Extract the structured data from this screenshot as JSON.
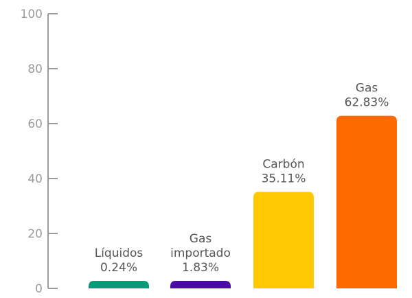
{
  "chart_data": {
    "type": "bar",
    "categories": [
      "Líquidos",
      "Gas importado",
      "Carbón",
      "Gas"
    ],
    "category_label_lines": [
      [
        "Líquidos"
      ],
      [
        "Gas",
        "importado"
      ],
      [
        "Carbón"
      ],
      [
        "Gas"
      ]
    ],
    "values": [
      0.24,
      1.83,
      35.11,
      62.83
    ],
    "value_labels": [
      "0.24%",
      "1.83%",
      "35.11%",
      "62.83%"
    ],
    "colors": [
      "#0b9a78",
      "#4a0aa6",
      "#ffc800",
      "#ff6a00"
    ],
    "ylim": [
      0,
      100
    ],
    "yticks": [
      0,
      20,
      40,
      60,
      80,
      100
    ],
    "ytick_labels": [
      "0",
      "20",
      "40",
      "60",
      "80",
      "100"
    ],
    "title": "",
    "xlabel": "",
    "ylabel": "",
    "grid": false,
    "legend": "none",
    "axis_color": "#9b9b9b"
  }
}
